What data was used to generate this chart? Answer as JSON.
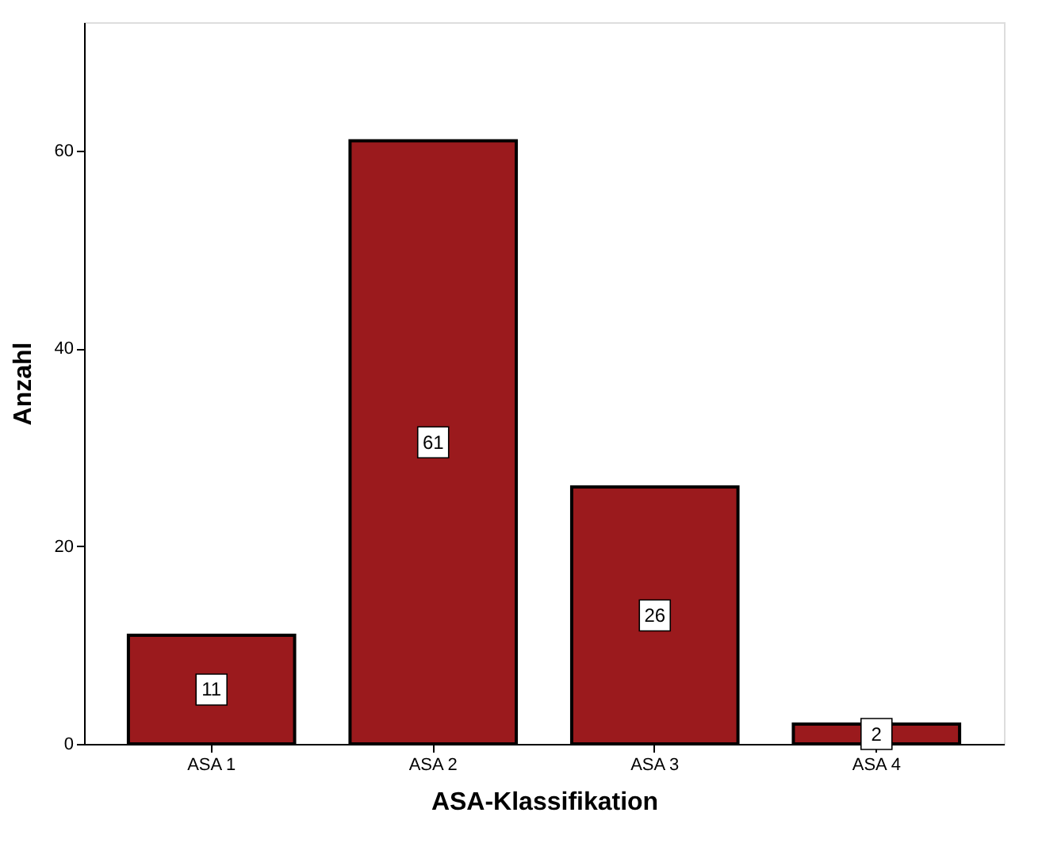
{
  "chart_data": {
    "type": "bar",
    "xlabel": "ASA-Klassifikation",
    "ylabel": "Anzahl",
    "categories": [
      "ASA 1",
      "ASA 2",
      "ASA 3",
      "ASA 4"
    ],
    "values": [
      11,
      61,
      26,
      2
    ],
    "color": "#9b1a1d",
    "ylim": [
      0,
      73
    ],
    "yticks": [
      0,
      20,
      40,
      60
    ],
    "grid": false,
    "data_labels": true
  }
}
